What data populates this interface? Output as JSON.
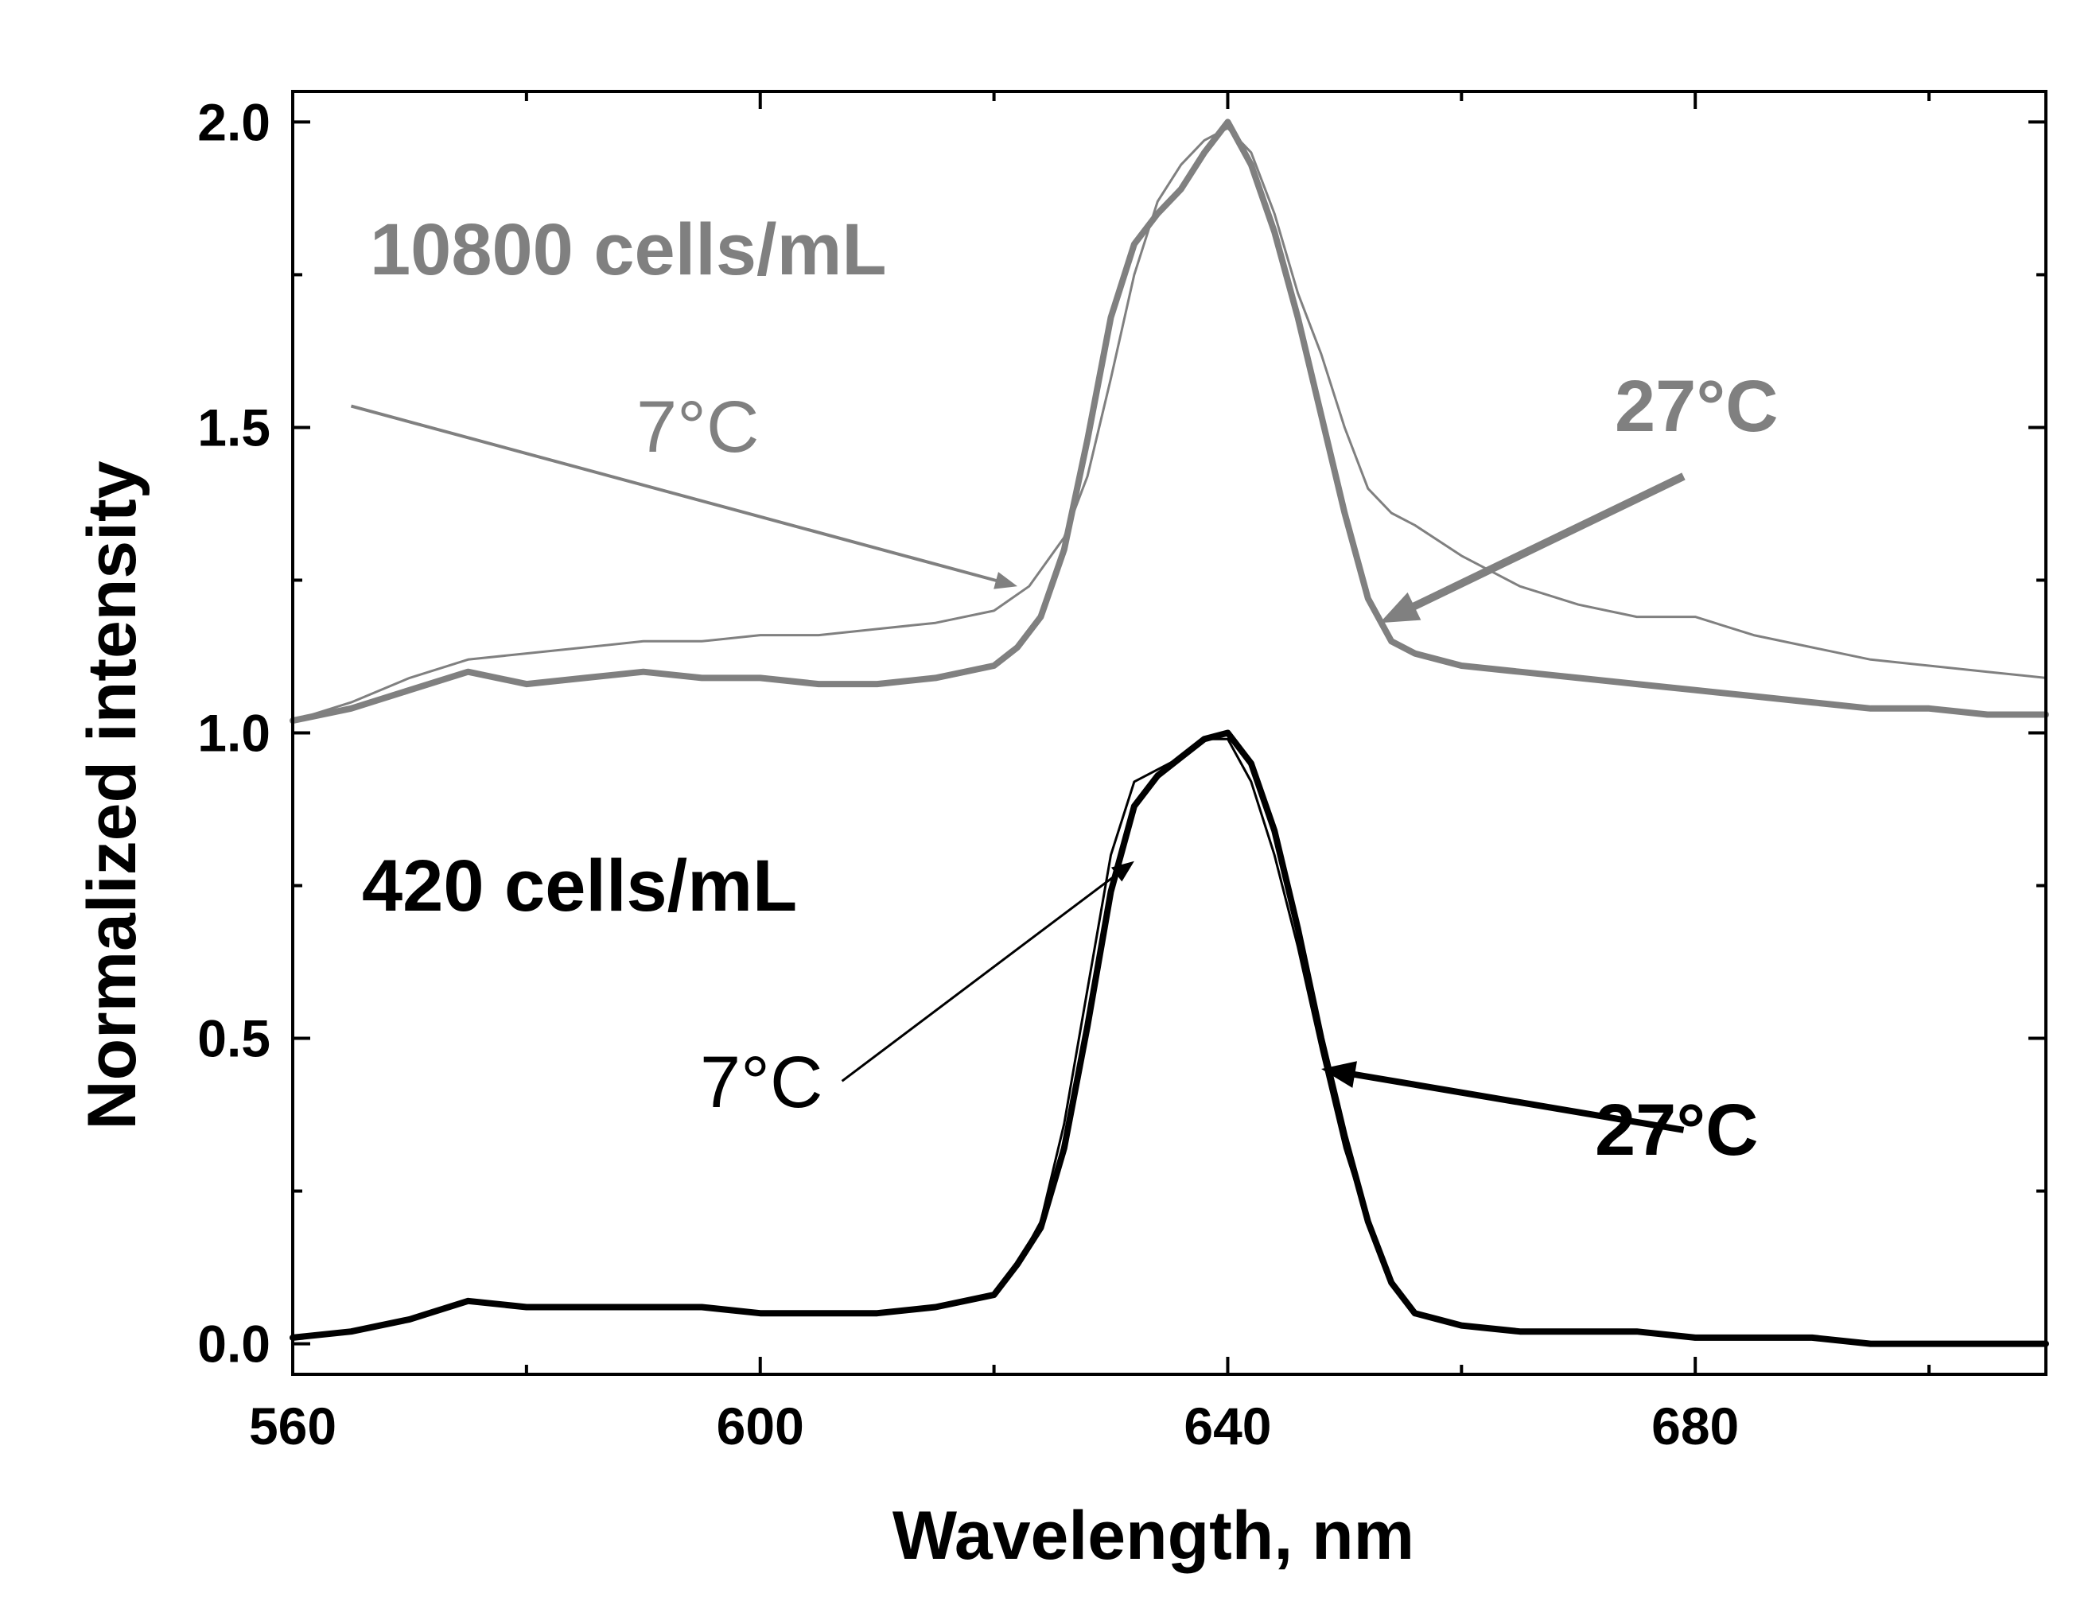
{
  "chart_data": {
    "type": "line",
    "title": "",
    "xlabel": "Wavelength, nm",
    "ylabel": "Normalized intensity",
    "xlim": [
      560,
      710
    ],
    "ylim": [
      -0.05,
      2.05
    ],
    "xticks": [
      560,
      600,
      640,
      680
    ],
    "xtick_labels": [
      "560",
      "600",
      "640",
      "680"
    ],
    "yticks": [
      0.0,
      0.5,
      1.0,
      1.5,
      2.0
    ],
    "ytick_labels": [
      "0.0",
      "0.5",
      "1.0",
      "1.5",
      "2.0"
    ],
    "grid": false,
    "colors": {
      "gray": "#808080",
      "black": "#000000"
    },
    "annotations": {
      "high_group": "10800 cells/mL",
      "low_group": "420 cells/mL",
      "high_cold": "7°C",
      "high_warm": "27°C",
      "low_cold": "7°C",
      "low_warm": "27°C"
    },
    "series": [
      {
        "name": "10800 cells/mL, 7°C",
        "color": "#808080",
        "weight": "thin",
        "x": [
          560,
          565,
          570,
          575,
          580,
          585,
          590,
          595,
          600,
          605,
          610,
          615,
          620,
          623,
          626,
          628,
          630,
          632,
          634,
          636,
          638,
          640,
          642,
          644,
          646,
          648,
          650,
          652,
          654,
          656,
          660,
          665,
          670,
          675,
          680,
          685,
          690,
          695,
          700,
          705,
          710
        ],
        "y": [
          1.02,
          1.05,
          1.09,
          1.12,
          1.13,
          1.14,
          1.15,
          1.15,
          1.16,
          1.16,
          1.17,
          1.18,
          1.2,
          1.24,
          1.32,
          1.42,
          1.58,
          1.75,
          1.87,
          1.93,
          1.97,
          1.99,
          1.95,
          1.85,
          1.72,
          1.62,
          1.5,
          1.4,
          1.36,
          1.34,
          1.29,
          1.24,
          1.21,
          1.19,
          1.19,
          1.16,
          1.14,
          1.12,
          1.11,
          1.1,
          1.09
        ]
      },
      {
        "name": "10800 cells/mL, 27°C",
        "color": "#808080",
        "weight": "thick",
        "x": [
          560,
          565,
          570,
          575,
          580,
          585,
          590,
          595,
          600,
          605,
          610,
          615,
          620,
          622,
          624,
          626,
          628,
          630,
          632,
          634,
          636,
          638,
          640,
          642,
          644,
          646,
          648,
          650,
          652,
          654,
          656,
          660,
          665,
          670,
          675,
          680,
          685,
          690,
          695,
          700,
          705,
          710
        ],
        "y": [
          1.02,
          1.04,
          1.07,
          1.1,
          1.08,
          1.09,
          1.1,
          1.09,
          1.09,
          1.08,
          1.08,
          1.09,
          1.11,
          1.14,
          1.19,
          1.3,
          1.48,
          1.68,
          1.8,
          1.85,
          1.89,
          1.95,
          2.0,
          1.93,
          1.82,
          1.68,
          1.52,
          1.36,
          1.22,
          1.15,
          1.13,
          1.11,
          1.1,
          1.09,
          1.08,
          1.07,
          1.06,
          1.05,
          1.04,
          1.04,
          1.03,
          1.03
        ]
      },
      {
        "name": "420 cells/mL, 7°C",
        "color": "#000000",
        "weight": "thin",
        "x": [
          560,
          565,
          570,
          575,
          580,
          585,
          590,
          595,
          600,
          605,
          610,
          615,
          620,
          622,
          624,
          626,
          628,
          630,
          632,
          634,
          636,
          638,
          640,
          642,
          644,
          646,
          648,
          650,
          652,
          654,
          656,
          658,
          660,
          665,
          670,
          675,
          680,
          685,
          690,
          695,
          700,
          705,
          710
        ],
        "y": [
          0.01,
          0.02,
          0.04,
          0.07,
          0.06,
          0.06,
          0.06,
          0.06,
          0.05,
          0.05,
          0.05,
          0.06,
          0.08,
          0.13,
          0.2,
          0.36,
          0.58,
          0.8,
          0.92,
          0.94,
          0.96,
          0.99,
          0.99,
          0.92,
          0.8,
          0.65,
          0.48,
          0.32,
          0.2,
          0.1,
          0.05,
          0.04,
          0.03,
          0.02,
          0.02,
          0.02,
          0.01,
          0.01,
          0.01,
          0.0,
          0.0,
          0.0,
          0.0
        ]
      },
      {
        "name": "420 cells/mL, 27°C",
        "color": "#000000",
        "weight": "thick",
        "x": [
          560,
          565,
          570,
          575,
          580,
          585,
          590,
          595,
          600,
          605,
          610,
          615,
          620,
          622,
          624,
          626,
          628,
          630,
          632,
          634,
          636,
          638,
          640,
          642,
          644,
          646,
          648,
          650,
          652,
          654,
          656,
          658,
          660,
          665,
          670,
          675,
          680,
          685,
          690,
          695,
          700,
          705,
          710
        ],
        "y": [
          0.01,
          0.02,
          0.04,
          0.07,
          0.06,
          0.06,
          0.06,
          0.06,
          0.05,
          0.05,
          0.05,
          0.06,
          0.08,
          0.13,
          0.19,
          0.32,
          0.52,
          0.74,
          0.88,
          0.93,
          0.96,
          0.99,
          1.0,
          0.95,
          0.84,
          0.68,
          0.5,
          0.34,
          0.2,
          0.1,
          0.05,
          0.04,
          0.03,
          0.02,
          0.02,
          0.02,
          0.01,
          0.01,
          0.01,
          0.0,
          0.0,
          0.0,
          0.0
        ]
      }
    ]
  }
}
